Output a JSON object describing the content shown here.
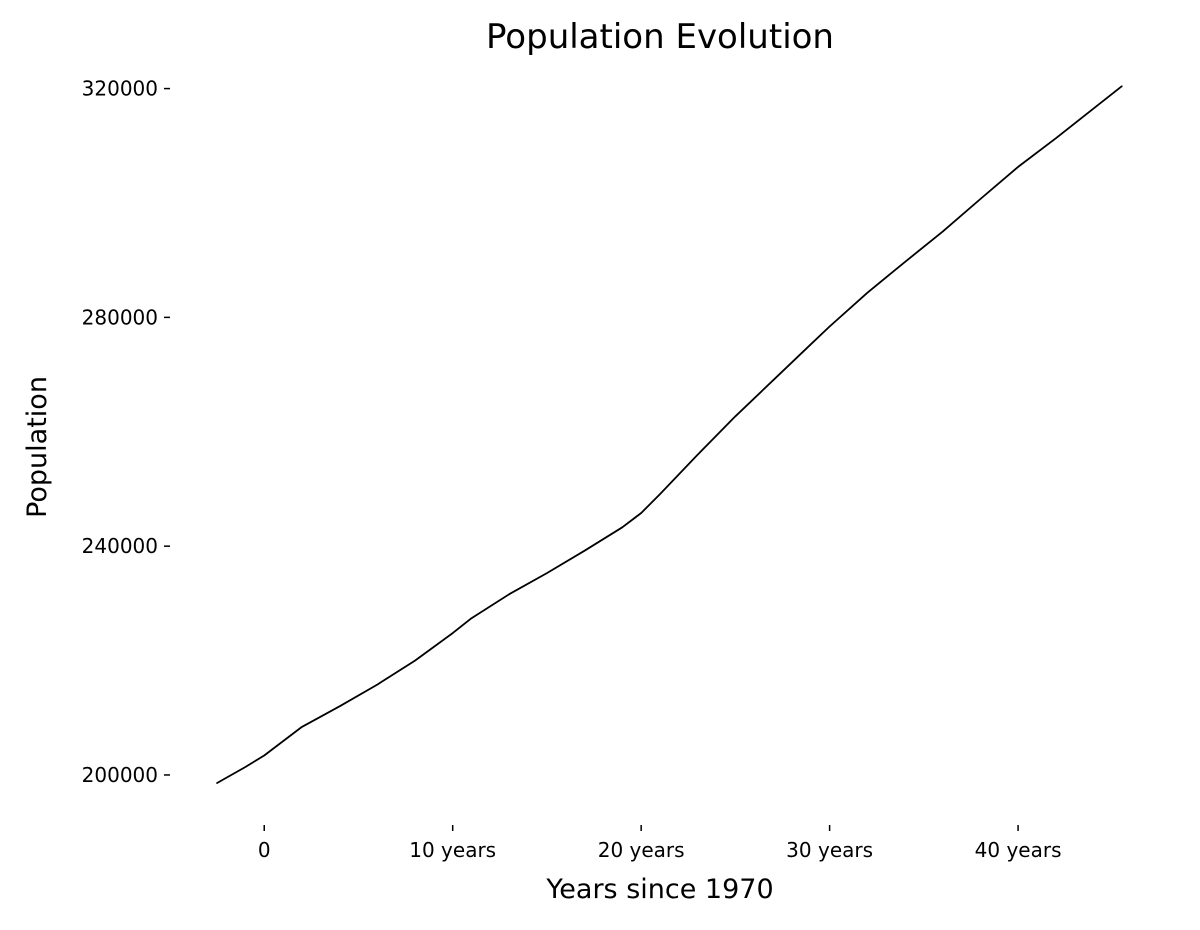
{
  "chart_data": {
    "type": "line",
    "title": "Population Evolution",
    "xlabel": "Years since 1970",
    "ylabel": "Population",
    "xlim": [
      -5,
      47
    ],
    "ylim": [
      193000,
      321500
    ],
    "x_ticks": [
      {
        "value": 0,
        "label": "0"
      },
      {
        "value": 10,
        "label": "10 years"
      },
      {
        "value": 20,
        "label": "20 years"
      },
      {
        "value": 30,
        "label": "30 years"
      },
      {
        "value": 40,
        "label": "40 years"
      }
    ],
    "y_ticks": [
      {
        "value": 200000,
        "label": "200000"
      },
      {
        "value": 240000,
        "label": "240000"
      },
      {
        "value": 280000,
        "label": "280000"
      },
      {
        "value": 320000,
        "label": "320000"
      }
    ],
    "grid": false,
    "line_color": "#000000",
    "series": [
      {
        "x": [
          -2.5,
          -1,
          0,
          2,
          4,
          6,
          8,
          10,
          11,
          13,
          15,
          17,
          19,
          20,
          21,
          23,
          25,
          27,
          29,
          30,
          32,
          34,
          36,
          38,
          40,
          42,
          44,
          45.5
        ],
        "y": [
          198600,
          201400,
          203400,
          208400,
          212000,
          215800,
          220000,
          224800,
          227400,
          231600,
          235300,
          239200,
          243300,
          245800,
          249100,
          256000,
          262700,
          269000,
          275300,
          278400,
          284300,
          289700,
          295000,
          300700,
          306300,
          311300,
          316500,
          320400
        ]
      }
    ]
  }
}
